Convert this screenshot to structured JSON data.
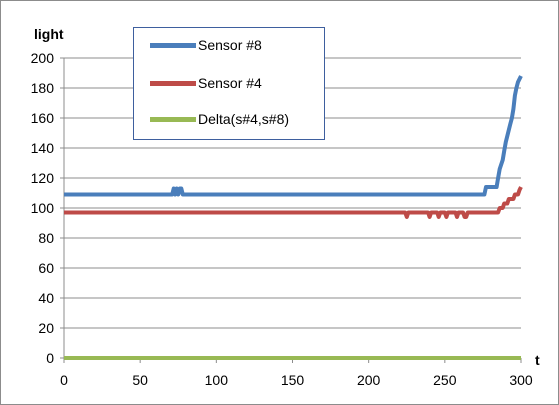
{
  "chart_data": {
    "type": "line",
    "ylabel": "light",
    "xlabel": "t",
    "xlim": [
      0,
      300
    ],
    "ylim": [
      0,
      200
    ],
    "x_ticks": [
      "0",
      "50",
      "100",
      "150",
      "200",
      "250",
      "300"
    ],
    "y_ticks": [
      "0",
      "20",
      "40",
      "60",
      "80",
      "100",
      "120",
      "140",
      "160",
      "180",
      "200"
    ],
    "grid": true,
    "legend_position": "top-left",
    "series": [
      {
        "name": "Sensor #8",
        "color": "#4a7ebb",
        "x": [
          0,
          71,
          72,
          73,
          74,
          75,
          76,
          77,
          78,
          79,
          276,
          277,
          278,
          284,
          285,
          286,
          288,
          289,
          290,
          291,
          292,
          293,
          294,
          295,
          296,
          297,
          298,
          299,
          300
        ],
        "y": [
          109,
          109,
          113,
          109,
          113,
          109,
          113,
          113,
          109,
          109,
          109,
          114,
          114,
          114,
          120,
          126,
          132,
          138,
          144,
          148,
          152,
          156,
          160,
          166,
          175,
          180,
          184,
          186,
          188
        ]
      },
      {
        "name": "Sensor #4",
        "color": "#be4b48",
        "x": [
          0,
          224,
          225,
          226,
          227,
          239,
          240,
          241,
          242,
          245,
          246,
          247,
          250,
          251,
          252,
          253,
          257,
          258,
          259,
          262,
          263,
          264,
          265,
          266,
          285,
          286,
          288,
          289,
          291,
          292,
          295,
          296,
          298,
          299,
          300
        ],
        "y": [
          97,
          97,
          94,
          97,
          97,
          97,
          94,
          97,
          97,
          97,
          94,
          97,
          97,
          94,
          97,
          97,
          97,
          94,
          97,
          97,
          94,
          94,
          97,
          97,
          97,
          100,
          100,
          103,
          103,
          106,
          106,
          109,
          109,
          112,
          114
        ]
      },
      {
        "name": "Delta(s#4,s#8)",
        "color": "#98b954",
        "x": [
          0,
          300
        ],
        "y": [
          0,
          0
        ]
      }
    ]
  }
}
